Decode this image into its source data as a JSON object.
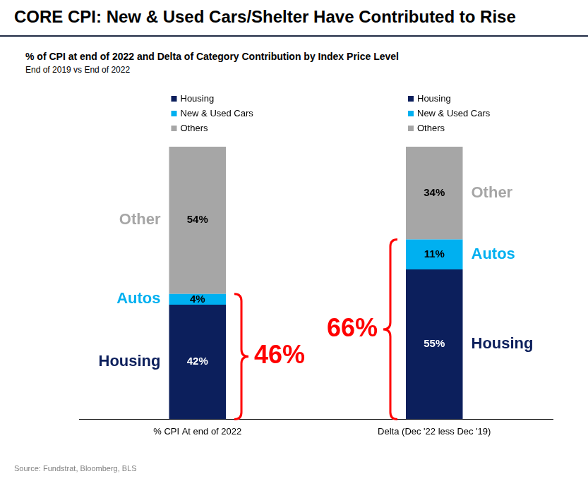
{
  "chart_data": {
    "type": "bar",
    "title": "CORE CPI: New & Used Cars/Shelter Have Contributed to Rise",
    "subtitle": "% of CPI at end of 2022 and Delta of Category Contribution by Index Price Level",
    "subtitle2": "End of 2019 vs End of 2022",
    "source": "Source: Fundstrat, Bloomberg, BLS",
    "categories": [
      "% CPI At end of 2022",
      "Delta (Dec '22 less Dec '19)"
    ],
    "series": [
      {
        "name": "Housing",
        "short_name": "Housing",
        "color": "#0c1f5c",
        "values": [
          42,
          55
        ],
        "value_labels": [
          "42%",
          "55%"
        ]
      },
      {
        "name": "New & Used Cars",
        "short_name": "Autos",
        "color": "#00b0f0",
        "values": [
          4,
          11
        ],
        "value_labels": [
          "4%",
          "11%"
        ]
      },
      {
        "name": "Others",
        "short_name": "Other",
        "color": "#a6a6a6",
        "values": [
          54,
          34
        ],
        "value_labels": [
          "54%",
          "34%"
        ]
      }
    ],
    "brackets": [
      {
        "category": "% CPI At end of 2022",
        "from": 0,
        "to": 46,
        "label": "46%",
        "color": "#ff0000"
      },
      {
        "category": "Delta (Dec '22 less Dec '19)",
        "from": 0,
        "to": 66,
        "label": "66%",
        "color": "#ff0000"
      }
    ],
    "ylim": [
      0,
      100
    ],
    "stacked": true,
    "data_labels": true,
    "tick_labels": "x",
    "grid": false,
    "legend": "top"
  }
}
